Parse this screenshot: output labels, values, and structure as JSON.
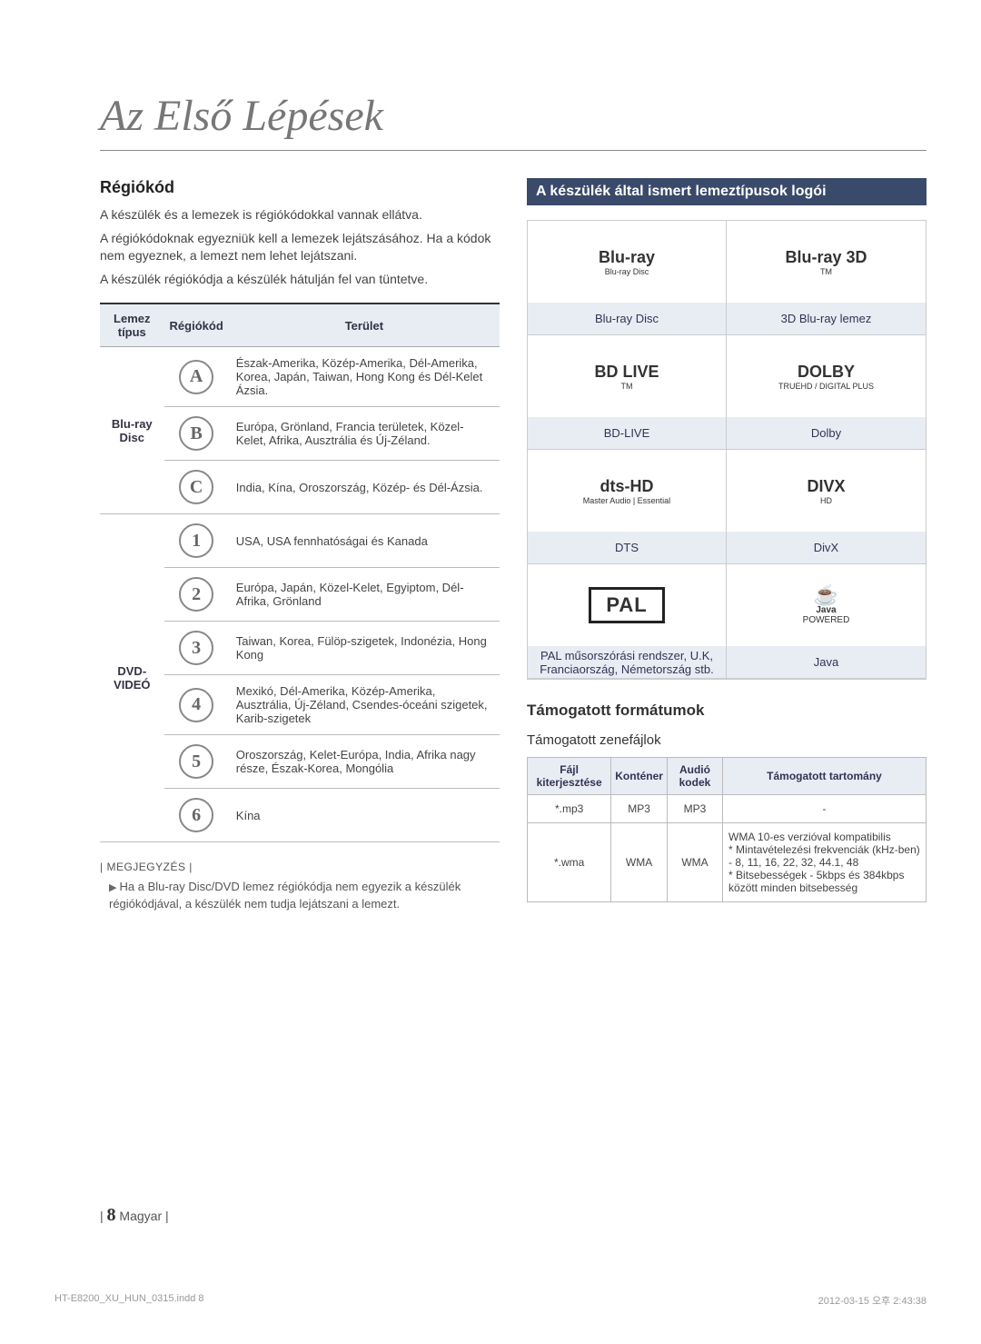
{
  "title": "Az Első Lépések",
  "region": {
    "heading": "Régiókód",
    "para1": "A készülék és a lemezek is régiókódokkal vannak ellátva.",
    "para2": "A régiókódoknak egyezniük kell a lemezek lejátszásához. Ha a kódok nem egyeznek, a lemezt nem lehet lejátszani.",
    "para3": "A készülék régiókódja a készülék hátulján fel van tüntetve.",
    "table": {
      "headers": [
        "Lemez típus",
        "Régiókód",
        "Terület"
      ],
      "bluray_label": "Blu-ray Disc",
      "dvd_label": "DVD-VIDEÓ",
      "bluray_rows": [
        {
          "icon": "A",
          "area": "Észak-Amerika, Közép-Amerika, Dél-Amerika, Korea, Japán, Taiwan, Hong Kong és Dél-Kelet Ázsia."
        },
        {
          "icon": "B",
          "area": "Európa, Grönland, Francia területek, Közel-Kelet, Afrika, Ausztrália és Új-Zéland."
        },
        {
          "icon": "C",
          "area": "India, Kína, Oroszország, Közép- és Dél-Ázsia."
        }
      ],
      "dvd_rows": [
        {
          "icon": "1",
          "area": "USA, USA fennhatóságai és Kanada"
        },
        {
          "icon": "2",
          "area": "Európa, Japán, Közel-Kelet, Egyiptom, Dél-Afrika, Grönland"
        },
        {
          "icon": "3",
          "area": "Taiwan, Korea, Fülöp-szigetek, Indonézia, Hong Kong"
        },
        {
          "icon": "4",
          "area": "Mexikó, Dél-Amerika, Közép-Amerika, Ausztrália, Új-Zéland, Csendes-óceáni szigetek, Karib-szigetek"
        },
        {
          "icon": "5",
          "area": "Oroszország, Kelet-Európa, India, Afrika nagy része, Észak-Korea, Mongólia"
        },
        {
          "icon": "6",
          "area": "Kína"
        }
      ]
    },
    "note_label": "| MEGJEGYZÉS |",
    "note_text": "Ha a Blu-ray Disc/DVD lemez régiókódja nem egyezik a készülék régiókódjával, a készülék nem tudja lejátszani a lemezt."
  },
  "logos": {
    "heading": "A készülék által ismert lemeztípusok logói",
    "cells": [
      {
        "logo_main": "Blu-ray",
        "logo_sub": "Blu-ray Disc",
        "label": "Blu-ray Disc"
      },
      {
        "logo_main": "Blu-ray 3D",
        "logo_sub": "TM",
        "label": "3D Blu-ray lemez"
      },
      {
        "logo_main": "BD LIVE",
        "logo_sub": "TM",
        "label": "BD-LIVE"
      },
      {
        "logo_main": "DOLBY",
        "logo_sub": "TRUEHD / DIGITAL PLUS",
        "label": "Dolby"
      },
      {
        "logo_main": "dts-HD",
        "logo_sub": "Master Audio | Essential",
        "label": "DTS"
      },
      {
        "logo_main": "DIVX",
        "logo_sub": "HD",
        "label": "DivX"
      },
      {
        "logo_main": "PAL",
        "logo_sub": "",
        "label": "PAL műsorszórási rendszer, U.K, Franciaország, Németország stb."
      },
      {
        "logo_main": "Java",
        "logo_sub": "POWERED",
        "label": "Java"
      }
    ]
  },
  "formats": {
    "heading": "Támogatott formátumok",
    "sub": "Támogatott zenefájlok",
    "headers": [
      "Fájl kiterjesztése",
      "Konténer",
      "Audió kodek",
      "Támogatott tartomány"
    ],
    "rows": [
      {
        "ext": "*.mp3",
        "container": "MP3",
        "codec": "MP3",
        "range": "-"
      },
      {
        "ext": "*.wma",
        "container": "WMA",
        "codec": "WMA",
        "range": "WMA 10-es verzióval kompatibilis\n* Mintavételezési frekvenciák (kHz-ben) - 8, 11, 16, 22, 32, 44.1, 48\n* Bitsebességek - 5kbps és 384kbps között minden bitsebesség"
      }
    ]
  },
  "footer": {
    "page": "8",
    "lang": "Magyar"
  },
  "indline": {
    "left": "HT-E8200_XU_HUN_0315.indd   8",
    "right": "2012-03-15   오후 2:43:38"
  }
}
